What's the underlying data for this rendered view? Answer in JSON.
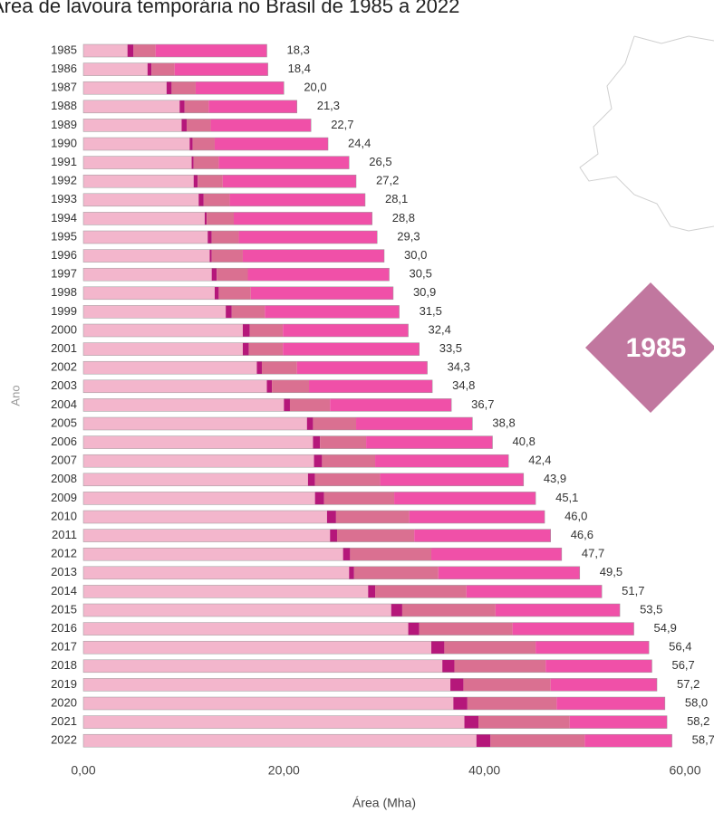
{
  "chart_data": {
    "type": "stacked-bar-horizontal",
    "title": "Área de lavoura temporária no Brasil de 1985 a 2022",
    "annotation": "1985",
    "x_label": "Área (Mha)",
    "y_label": "Ano",
    "categories": [
      "1985",
      "1986",
      "1987",
      "1988",
      "1989",
      "1990",
      "1991",
      "1992",
      "1993",
      "1994",
      "1995",
      "1996",
      "1997",
      "1998",
      "1999",
      "2000",
      "2001",
      "2002",
      "2003",
      "2004",
      "2005",
      "2006",
      "2007",
      "2008",
      "2009",
      "2010",
      "2011",
      "2012",
      "2013",
      "2014",
      "2015",
      "2016",
      "2017",
      "2018",
      "2019",
      "2020",
      "2021",
      "2022"
    ],
    "series": [
      {
        "color": "#f3b6cc",
        "values": [
          4.4,
          6.4,
          8.3,
          9.6,
          9.8,
          10.6,
          10.8,
          11.0,
          11.5,
          12.1,
          12.4,
          12.6,
          12.8,
          13.1,
          14.2,
          15.9,
          15.9,
          17.3,
          18.3,
          20.0,
          22.3,
          22.9,
          23.0,
          22.4,
          23.1,
          24.3,
          24.6,
          25.9,
          26.5,
          28.4,
          30.7,
          32.4,
          34.7,
          35.8,
          36.6,
          36.9,
          38.0,
          39.2
        ]
      },
      {
        "color": "#b5177a",
        "values": [
          0.6,
          0.4,
          0.5,
          0.5,
          0.5,
          0.3,
          0.2,
          0.4,
          0.5,
          0.2,
          0.4,
          0.2,
          0.5,
          0.4,
          0.6,
          0.7,
          0.6,
          0.5,
          0.5,
          0.6,
          0.6,
          0.7,
          0.8,
          0.7,
          0.9,
          0.9,
          0.7,
          0.7,
          0.5,
          0.7,
          1.1,
          1.1,
          1.3,
          1.2,
          1.3,
          1.4,
          1.4,
          1.4
        ]
      },
      {
        "color": "#da7091",
        "values": [
          2.2,
          2.3,
          2.4,
          2.4,
          2.4,
          2.2,
          2.5,
          2.5,
          2.6,
          2.7,
          2.7,
          3.1,
          3.1,
          3.2,
          3.3,
          3.3,
          3.4,
          3.5,
          3.7,
          4.0,
          4.3,
          4.6,
          5.3,
          6.5,
          7.0,
          7.3,
          7.7,
          8.1,
          8.4,
          9.1,
          9.3,
          9.3,
          9.1,
          9.1,
          8.7,
          8.9,
          9.1,
          9.4
        ]
      },
      {
        "color": "#f050a8",
        "values": [
          11.1,
          9.3,
          8.8,
          8.8,
          10.0,
          11.3,
          13.0,
          13.3,
          13.5,
          13.8,
          13.8,
          14.1,
          14.1,
          14.2,
          13.4,
          12.5,
          13.6,
          13.0,
          12.3,
          12.1,
          11.6,
          12.6,
          13.3,
          14.3,
          14.1,
          13.5,
          13.6,
          13.0,
          14.1,
          13.5,
          12.4,
          12.1,
          11.3,
          10.6,
          10.6,
          10.8,
          9.7,
          8.7
        ]
      }
    ],
    "totals": [
      18.3,
      18.4,
      20.0,
      21.3,
      22.7,
      24.4,
      26.5,
      27.2,
      28.1,
      28.8,
      29.3,
      30.0,
      30.5,
      30.9,
      31.5,
      32.4,
      33.5,
      34.3,
      34.8,
      36.7,
      38.8,
      40.8,
      42.4,
      43.9,
      45.1,
      46.0,
      46.6,
      47.7,
      49.5,
      51.7,
      53.5,
      54.9,
      56.4,
      56.7,
      57.2,
      58.0,
      58.2,
      58.7
    ],
    "total_labels": [
      "18,3",
      "18,4",
      "20,0",
      "21,3",
      "22,7",
      "24,4",
      "26,5",
      "27,2",
      "28,1",
      "28,8",
      "29,3",
      "30,0",
      "30,5",
      "30,9",
      "31,5",
      "32,4",
      "33,5",
      "34,3",
      "34,8",
      "36,7",
      "38,8",
      "40,8",
      "42,4",
      "43,9",
      "45,1",
      "46,0",
      "46,6",
      "47,7",
      "49,5",
      "51,7",
      "53,5",
      "54,9",
      "56,4",
      "56,7",
      "57,2",
      "58,0",
      "58,2",
      "58,7"
    ],
    "xlim": [
      0,
      60
    ],
    "xticks": [
      {
        "value": 0,
        "label": "0,00"
      },
      {
        "value": 20,
        "label": "20,00"
      },
      {
        "value": 40,
        "label": "40,00"
      },
      {
        "value": 60,
        "label": "60,00"
      }
    ],
    "grid": false
  }
}
